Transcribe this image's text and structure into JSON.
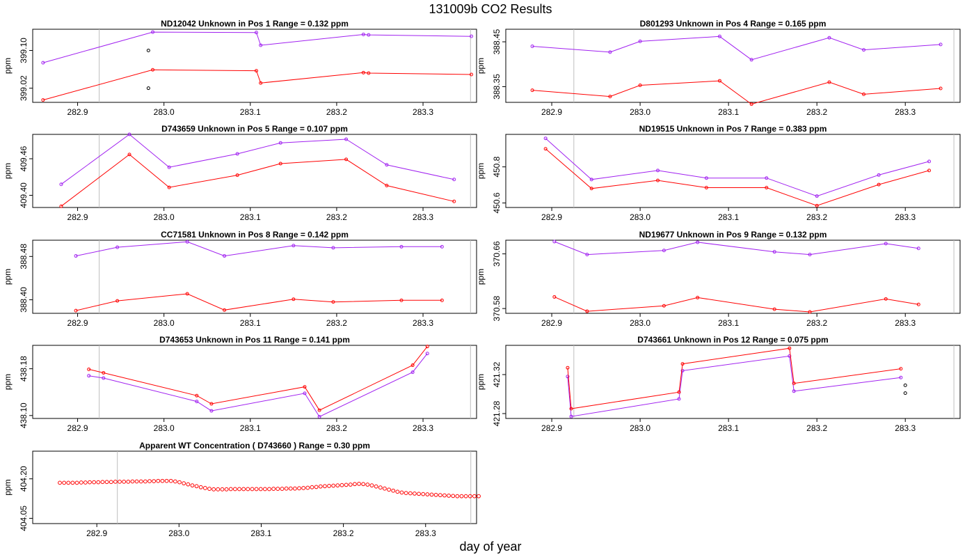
{
  "figure_title": "131009b  CO2 Results",
  "xlabel": "day of year",
  "colors": {
    "series1": "#a020f0",
    "series2": "#ff0000",
    "outlier": "#000000",
    "vline": "#bebebe"
  },
  "chart_data": [
    {
      "type": "line",
      "title": "ND12042    Unknown in Pos 1         Range =  0.132 ppm",
      "ylabel": "ppm",
      "xlim": [
        282.848,
        283.362
      ],
      "ylim": [
        398.99,
        399.145
      ],
      "xticks": [
        "282.9",
        "283.0",
        "283.1",
        "283.2",
        "283.3"
      ],
      "yticks": [
        "399.02",
        "399.10"
      ],
      "vlines": [
        282.925,
        283.355
      ],
      "series": [
        {
          "name": "purple",
          "color": "#a020f0",
          "x": [
            282.86,
            282.987,
            283.107,
            283.112,
            283.231,
            283.237,
            283.356
          ],
          "y": [
            399.074,
            399.139,
            399.138,
            399.111,
            399.134,
            399.133,
            399.13
          ]
        },
        {
          "name": "red",
          "color": "#ff0000",
          "x": [
            282.86,
            282.987,
            283.107,
            283.112,
            283.231,
            283.237,
            283.356
          ],
          "y": [
            398.995,
            399.059,
            399.057,
            399.031,
            399.053,
            399.052,
            399.049
          ]
        }
      ],
      "outliers": [
        {
          "x": 282.982,
          "y": 399.1
        },
        {
          "x": 282.982,
          "y": 399.02
        }
      ]
    },
    {
      "type": "line",
      "title": "D801293    Unknown in Pos 4         Range =  0.165 ppm",
      "ylabel": "ppm",
      "xlim": [
        282.848,
        283.362
      ],
      "ylim": [
        388.315,
        388.478
      ],
      "xticks": [
        "282.9",
        "283.0",
        "283.1",
        "283.2",
        "283.3"
      ],
      "yticks": [
        "388.35",
        "388.45"
      ],
      "vlines": [
        282.925,
        283.355
      ],
      "series": [
        {
          "name": "purple",
          "color": "#a020f0",
          "x": [
            282.878,
            282.966,
            283.0,
            283.09,
            283.126,
            283.214,
            283.253,
            283.34
          ],
          "y": [
            388.44,
            388.427,
            388.451,
            388.462,
            388.41,
            388.459,
            388.432,
            388.444
          ]
        },
        {
          "name": "red",
          "color": "#ff0000",
          "x": [
            282.878,
            282.966,
            283.0,
            283.09,
            283.126,
            283.214,
            283.253,
            283.34
          ],
          "y": [
            388.342,
            388.328,
            388.353,
            388.363,
            388.311,
            388.36,
            388.333,
            388.346
          ]
        }
      ]
    },
    {
      "type": "line",
      "title": "D743659    Unknown in Pos 5         Range =  0.107 ppm",
      "ylabel": "ppm",
      "xlim": [
        282.848,
        283.362
      ],
      "ylim": [
        409.38,
        409.5
      ],
      "xticks": [
        "282.9",
        "283.0",
        "283.1",
        "283.2",
        "283.3"
      ],
      "yticks": [
        "409.40",
        "409.46"
      ],
      "vlines": [
        282.925,
        283.355
      ],
      "series": [
        {
          "name": "purple",
          "color": "#a020f0",
          "x": [
            282.881,
            282.96,
            283.006,
            283.085,
            283.135,
            283.211,
            283.258,
            283.336
          ],
          "y": [
            409.418,
            409.5,
            409.446,
            409.468,
            409.486,
            409.492,
            409.45,
            409.426
          ]
        },
        {
          "name": "red",
          "color": "#ff0000",
          "x": [
            282.881,
            282.96,
            283.006,
            283.085,
            283.135,
            283.211,
            283.258,
            283.336
          ],
          "y": [
            409.382,
            409.467,
            409.413,
            409.433,
            409.452,
            409.459,
            409.416,
            409.39
          ]
        }
      ]
    },
    {
      "type": "line",
      "title": "ND19515    Unknown in Pos 7         Range =  0.383 ppm",
      "ylabel": "ppm",
      "xlim": [
        282.848,
        283.362
      ],
      "ylim": [
        450.575,
        450.98
      ],
      "xticks": [
        "282.9",
        "283.0",
        "283.1",
        "283.2",
        "283.3"
      ],
      "yticks": [
        "450.6",
        "450.8"
      ],
      "vlines": [
        282.925,
        283.355
      ],
      "series": [
        {
          "name": "purple",
          "color": "#a020f0",
          "x": [
            282.893,
            282.945,
            283.02,
            283.075,
            283.143,
            283.2,
            283.27,
            283.327
          ],
          "y": [
            450.958,
            450.73,
            450.78,
            450.738,
            450.738,
            450.638,
            450.755,
            450.83
          ]
        },
        {
          "name": "red",
          "color": "#ff0000",
          "x": [
            282.893,
            282.945,
            283.02,
            283.075,
            283.143,
            283.2,
            283.27,
            283.327
          ],
          "y": [
            450.9,
            450.68,
            450.725,
            450.685,
            450.685,
            450.585,
            450.702,
            450.78
          ]
        }
      ]
    },
    {
      "type": "line",
      "title": "CC71581    Unknown in Pos 8         Range =  0.142 ppm",
      "ylabel": "ppm",
      "xlim": [
        282.848,
        283.362
      ],
      "ylim": [
        388.375,
        388.51
      ],
      "xticks": [
        "282.9",
        "283.0",
        "283.1",
        "283.2",
        "283.3"
      ],
      "yticks": [
        "388.40",
        "388.48"
      ],
      "vlines": [
        282.925,
        283.355
      ],
      "series": [
        {
          "name": "purple",
          "color": "#a020f0",
          "x": [
            282.898,
            282.946,
            283.027,
            283.07,
            283.15,
            283.196,
            283.275,
            283.322
          ],
          "y": [
            388.481,
            388.497,
            388.507,
            388.481,
            388.5,
            388.496,
            388.498,
            388.498
          ]
        },
        {
          "name": "red",
          "color": "#ff0000",
          "x": [
            282.898,
            282.946,
            283.027,
            283.07,
            283.15,
            283.196,
            283.275,
            283.322
          ],
          "y": [
            388.38,
            388.398,
            388.411,
            388.381,
            388.401,
            388.396,
            388.399,
            388.399
          ]
        }
      ]
    },
    {
      "type": "line",
      "title": "ND19677    Unknown in Pos 9         Range =  0.132 ppm",
      "ylabel": "ppm",
      "xlim": [
        282.848,
        283.362
      ],
      "ylim": [
        370.573,
        370.68
      ],
      "xticks": [
        "282.9",
        "283.0",
        "283.1",
        "283.2",
        "283.3"
      ],
      "yticks": [
        "370.58",
        "370.66"
      ],
      "vlines": [
        282.925,
        283.355
      ],
      "series": [
        {
          "name": "purple",
          "color": "#a020f0",
          "x": [
            282.903,
            282.94,
            283.027,
            283.065,
            283.152,
            283.192,
            283.278,
            283.315
          ],
          "y": [
            370.678,
            370.659,
            370.665,
            370.677,
            370.663,
            370.659,
            370.675,
            370.668
          ]
        },
        {
          "name": "red",
          "color": "#ff0000",
          "x": [
            282.903,
            282.94,
            283.027,
            283.065,
            283.152,
            283.192,
            283.278,
            283.315
          ],
          "y": [
            370.597,
            370.576,
            370.584,
            370.596,
            370.579,
            370.575,
            370.594,
            370.586
          ]
        }
      ]
    },
    {
      "type": "line",
      "title": "D743653    Unknown in Pos 11         Range =  0.141 ppm",
      "ylabel": "ppm",
      "xlim": [
        282.848,
        283.362
      ],
      "ylim": [
        438.095,
        438.22
      ],
      "xticks": [
        "282.9",
        "283.0",
        "283.1",
        "283.2",
        "283.3"
      ],
      "yticks": [
        "438.10",
        "438.18"
      ],
      "vlines": [
        282.925,
        283.355
      ],
      "series": [
        {
          "name": "purple",
          "color": "#a020f0",
          "x": [
            282.913,
            282.93,
            283.038,
            283.055,
            283.163,
            283.18,
            283.288,
            283.305
          ],
          "y": [
            438.168,
            438.164,
            438.124,
            438.108,
            438.138,
            438.098,
            438.174,
            438.206
          ]
        },
        {
          "name": "red",
          "color": "#ff0000",
          "x": [
            282.913,
            282.93,
            283.038,
            283.055,
            283.163,
            283.18,
            283.288,
            283.305
          ],
          "y": [
            438.179,
            438.173,
            438.134,
            438.12,
            438.149,
            438.109,
            438.186,
            438.218
          ]
        }
      ]
    },
    {
      "type": "line",
      "title": "D743661    Unknown in Pos 12         Range =  0.075 ppm",
      "ylabel": "ppm",
      "xlim": [
        282.848,
        283.362
      ],
      "ylim": [
        421.275,
        421.35
      ],
      "xticks": [
        "282.9",
        "283.0",
        "283.1",
        "283.2",
        "283.3"
      ],
      "yticks": [
        "421.28",
        "421.32"
      ],
      "vlines": [
        282.925,
        283.355
      ],
      "series": [
        {
          "name": "purple",
          "color": "#a020f0",
          "x": [
            282.918,
            282.922,
            283.044,
            283.048,
            283.169,
            283.174,
            283.295
          ],
          "y": [
            421.318,
            421.277,
            421.295,
            421.324,
            421.339,
            421.303,
            421.317
          ]
        },
        {
          "name": "red",
          "color": "#ff0000",
          "x": [
            282.918,
            282.922,
            283.044,
            283.048,
            283.169,
            283.174,
            283.295
          ],
          "y": [
            421.327,
            421.285,
            421.302,
            421.331,
            421.347,
            421.311,
            421.326
          ]
        }
      ],
      "outliers": [
        {
          "x": 283.3,
          "y": 421.309
        },
        {
          "x": 283.3,
          "y": 421.301
        }
      ]
    },
    {
      "type": "scatter",
      "title": "Apparent WT Concentration ( D743660 )         Range = 0.30 ppm",
      "ylabel": "ppm",
      "xlim": [
        282.822,
        283.362
      ],
      "ylim": [
        404.03,
        404.305
      ],
      "xticks": [
        "282.9",
        "283.0",
        "283.1",
        "283.2",
        "283.3"
      ],
      "yticks": [
        "404.05",
        "404.20"
      ],
      "vlines": [
        282.925,
        283.355
      ],
      "series": [
        {
          "name": "WT",
          "color": "#ff0000",
          "marker": "open-circle",
          "x_start": 282.855,
          "x_step": 0.0052,
          "y": [
            404.185,
            404.185,
            404.185,
            404.185,
            404.185,
            404.186,
            404.186,
            404.187,
            404.187,
            404.187,
            404.188,
            404.188,
            404.188,
            404.189,
            404.189,
            404.189,
            404.189,
            404.19,
            404.19,
            404.19,
            404.19,
            404.191,
            404.191,
            404.192,
            404.192,
            404.192,
            404.192,
            404.19,
            404.187,
            404.183,
            404.179,
            404.175,
            404.172,
            404.168,
            404.165,
            404.162,
            404.16,
            404.16,
            404.16,
            404.16,
            404.161,
            404.161,
            404.161,
            404.161,
            404.161,
            404.161,
            404.161,
            404.161,
            404.161,
            404.161,
            404.162,
            404.162,
            404.162,
            404.163,
            404.163,
            404.163,
            404.164,
            404.165,
            404.166,
            404.168,
            404.169,
            404.171,
            404.172,
            404.173,
            404.174,
            404.175,
            404.176,
            404.177,
            404.178,
            404.18,
            404.181,
            404.18,
            404.178,
            404.175,
            404.171,
            404.167,
            404.163,
            404.159,
            404.155,
            404.151,
            404.148,
            404.146,
            404.145,
            404.144,
            404.143,
            404.142,
            404.141,
            404.14,
            404.139,
            404.138,
            404.137,
            404.136,
            404.135,
            404.134,
            404.134,
            404.134,
            404.134,
            404.134,
            404.134
          ]
        }
      ]
    }
  ]
}
